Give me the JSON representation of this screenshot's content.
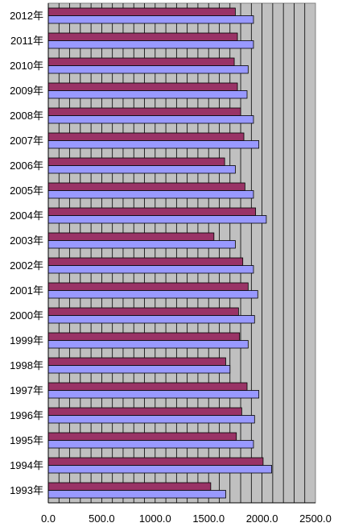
{
  "chart_data": {
    "type": "bar",
    "orientation": "horizontal",
    "categories": [
      "2012年",
      "2011年",
      "2010年",
      "2009年",
      "2008年",
      "2007年",
      "2006年",
      "2005年",
      "2004年",
      "2003年",
      "2002年",
      "2001年",
      "2000年",
      "1999年",
      "1998年",
      "1997年",
      "1996年",
      "1995年",
      "1994年",
      "1993年"
    ],
    "series": [
      {
        "values": [
          1750,
          1770,
          1740,
          1770,
          1800,
          1830,
          1650,
          1840,
          1940,
          1550,
          1820,
          1870,
          1780,
          1790,
          1660,
          1860,
          1810,
          1760,
          2010,
          1520
        ]
      },
      {
        "values": [
          1920,
          1920,
          1870,
          1860,
          1920,
          1970,
          1750,
          1920,
          2040,
          1750,
          1920,
          1960,
          1930,
          1870,
          1700,
          1970,
          1930,
          1920,
          2090,
          1660
        ]
      }
    ],
    "xlim": [
      0,
      2500
    ],
    "x_ticks": [
      "0.0",
      "500.0",
      "1000.0",
      "1500.0",
      "2000.0",
      "2500.0"
    ],
    "grid": true,
    "colors": {
      "series1": "#993366",
      "series2": "#9999ff",
      "plot_bg": "#c0c0c0",
      "grid": "#000000"
    }
  }
}
